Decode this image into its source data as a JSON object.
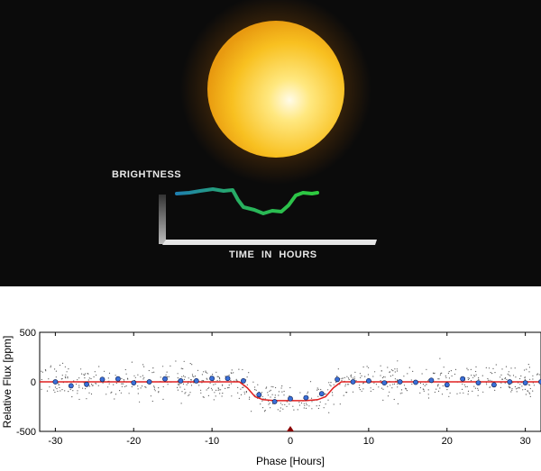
{
  "illustration": {
    "brightness_label": "BRIGHTNESS",
    "time_label": "TIME IN HOURS",
    "sun_color": "#f8c020",
    "curve_colors": [
      "#1f7fb0",
      "#2ecc3e"
    ]
  },
  "chart_data": {
    "type": "scatter",
    "title": "",
    "xlabel": "Phase [Hours]",
    "ylabel": "Relative Flux [ppm]",
    "xlim": [
      -32,
      32
    ],
    "ylim": [
      -500,
      500
    ],
    "xticks": [
      -30,
      -20,
      -10,
      0,
      10,
      20,
      30
    ],
    "yticks": [
      -500,
      0,
      500
    ],
    "grid": false,
    "legend": "none",
    "marker": {
      "x": 0,
      "y": -500,
      "color": "#8b0000"
    },
    "series": [
      {
        "kind": "binned_points",
        "color": "#3a6fd8",
        "x": [
          -30,
          -28,
          -26,
          -24,
          -22,
          -20,
          -18,
          -16,
          -14,
          -12,
          -10,
          -8,
          -6,
          -4,
          -2,
          0,
          2,
          4,
          6,
          8,
          10,
          12,
          14,
          16,
          18,
          20,
          22,
          24,
          26,
          28,
          30,
          32
        ],
        "y": [
          0,
          -40,
          -25,
          25,
          30,
          -10,
          0,
          30,
          10,
          10,
          35,
          35,
          10,
          -130,
          -200,
          -170,
          -160,
          -120,
          25,
          0,
          10,
          -10,
          0,
          -5,
          15,
          -30,
          30,
          -10,
          -30,
          0,
          -10,
          0
        ]
      },
      {
        "kind": "model_line",
        "color": "#e02020",
        "x": [
          -32,
          -6.5,
          -5.5,
          -4.5,
          -3.5,
          -2,
          0,
          2,
          3.5,
          4.5,
          5.5,
          6.5,
          32
        ],
        "y": [
          0,
          0,
          -60,
          -150,
          -180,
          -190,
          -190,
          -190,
          -180,
          -150,
          -60,
          0,
          0
        ]
      }
    ]
  }
}
